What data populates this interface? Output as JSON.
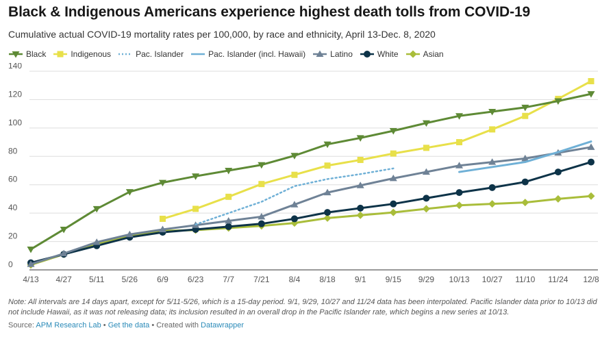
{
  "title": "Black & Indigenous Americans experience highest death tolls from COVID-19",
  "subtitle": "Cumulative actual COVID-19 mortality rates per 100,000, by race and ethnicity, April 13-Dec. 8, 2020",
  "note": "Note: All intervals are 14 days apart, except for 5/11-5/26, which is a 15-day period. 9/1, 9/29, 10/27 and 11/24 data has been interpolated. Pacific Islander data prior to 10/13 did not include Hawaii, as it was not releasing data; its inclusion resulted in an overall drop in the Pacific Islander rate, which begins a new series at 10/13.",
  "source": {
    "label": "Source: ",
    "org": "APM Research Lab",
    "sep1": " • ",
    "get_data": "Get the data",
    "sep2": " • Created with ",
    "tool": "Datawrapper"
  },
  "colors": {
    "black": "#5e8a35",
    "indigenous": "#e8e04a",
    "pac_islander": "#6fb0d6",
    "pac_islander_hawaii": "#6fb0d6",
    "latino": "#6f8296",
    "white": "#0d3348",
    "asian": "#a9bd3a",
    "grid": "#dddddd"
  },
  "chart_data": {
    "type": "line",
    "categories": [
      "4/13",
      "4/27",
      "5/11",
      "5/26",
      "6/9",
      "6/23",
      "7/7",
      "7/21",
      "8/4",
      "8/18",
      "9/1",
      "9/15",
      "9/29",
      "10/13",
      "10/27",
      "11/10",
      "11/24",
      "12/8"
    ],
    "ylim": [
      0,
      140
    ],
    "yticks": [
      0,
      20,
      40,
      60,
      80,
      100,
      120,
      140
    ],
    "legend_position": "top",
    "grid": true,
    "series": [
      {
        "name": "Black",
        "key": "black",
        "marker": "triangle-down",
        "dash": false,
        "values": [
          14.5,
          28.5,
          43,
          55,
          61.5,
          66,
          70,
          74,
          80.5,
          88.5,
          93,
          98,
          103.5,
          108.5,
          111.5,
          114.5,
          119,
          124
        ]
      },
      {
        "name": "Indigenous",
        "key": "indigenous",
        "marker": "square",
        "dash": false,
        "values": [
          null,
          null,
          null,
          null,
          36,
          43,
          51.5,
          60.5,
          67,
          73.5,
          77.5,
          82,
          86,
          90,
          99,
          108.5,
          120.5,
          133
        ]
      },
      {
        "name": "Pac. Islander",
        "key": "pac_islander",
        "marker": "none",
        "dash": true,
        "values": [
          null,
          null,
          null,
          null,
          null,
          32,
          40,
          48,
          59,
          64,
          67.5,
          71.5,
          null,
          null,
          null,
          null,
          null,
          null
        ]
      },
      {
        "name": "Pac. Islander (incl. Hawaii)",
        "key": "pac_islander_hawaii",
        "marker": "none",
        "dash": false,
        "values": [
          null,
          null,
          null,
          null,
          null,
          null,
          null,
          null,
          null,
          null,
          null,
          null,
          null,
          69,
          72.5,
          76,
          83,
          90.5
        ]
      },
      {
        "name": "Latino",
        "key": "latino",
        "marker": "triangle-up",
        "dash": false,
        "values": [
          4,
          11.5,
          19.5,
          25,
          28.5,
          31.5,
          34.5,
          37.5,
          46,
          54.5,
          59.5,
          64.5,
          69,
          73.5,
          76,
          78.5,
          82.5,
          86.5
        ]
      },
      {
        "name": "White",
        "key": "white",
        "marker": "circle",
        "dash": false,
        "values": [
          5,
          11,
          17,
          23,
          26.5,
          28.5,
          30.5,
          32.5,
          36,
          40.5,
          43.5,
          46.5,
          50.5,
          54.5,
          58,
          62,
          69,
          76
        ]
      },
      {
        "name": "Asian",
        "key": "asian",
        "marker": "diamond",
        "dash": false,
        "values": [
          3.5,
          11,
          18.5,
          24,
          27.5,
          28,
          29.5,
          31,
          33,
          36.5,
          38.5,
          40.5,
          43,
          45.5,
          46.5,
          47.5,
          50,
          52
        ]
      }
    ]
  }
}
